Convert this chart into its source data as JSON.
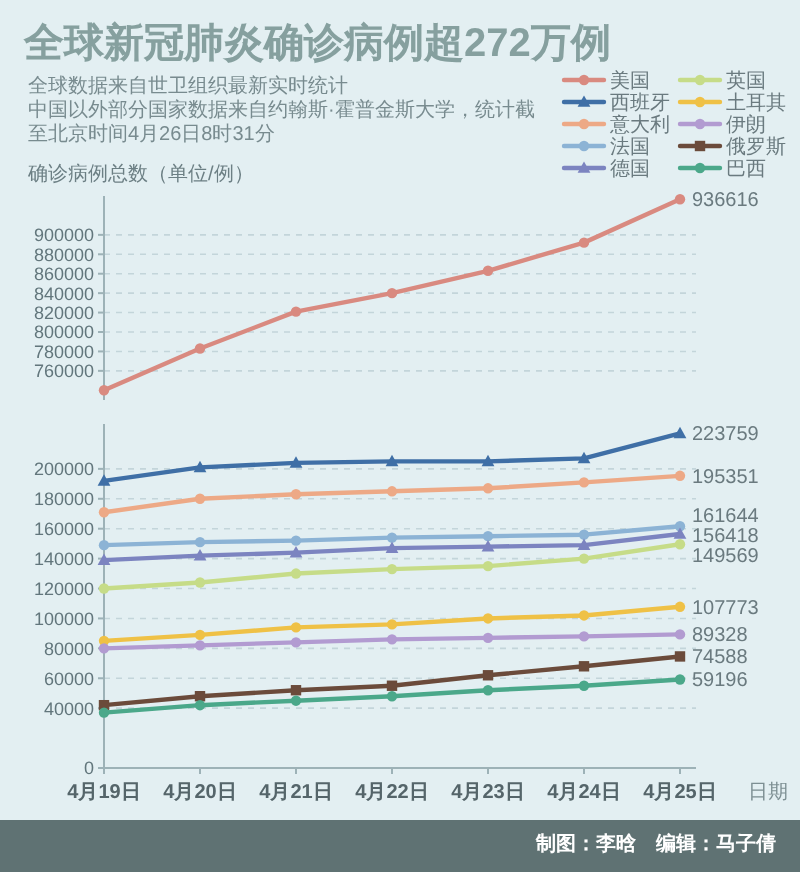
{
  "chart_data": [
    {
      "type": "line",
      "title": "全球新冠肺炎确诊病例超272万例",
      "subtitle": "全球数据来自世卫组织最新实时统计",
      "annotations": [
        "中国以外部分国家数据来自约翰斯·霍普金斯大学，统计截至北京时间4月26日8时31分"
      ],
      "ylabel": "确诊病例总数（单位/例）",
      "categories": [
        "4月19日",
        "4月20日",
        "4月21日",
        "4月22日",
        "4月23日",
        "4月24日",
        "4月25日"
      ],
      "series": [
        {
          "name": "美国",
          "color": "#d98a80",
          "marker": "circle",
          "values": [
            740000,
            783000,
            821000,
            840000,
            863000,
            892000,
            936616
          ],
          "value_labels": [
            null,
            null,
            null,
            null,
            null,
            null,
            "936616"
          ]
        }
      ],
      "ylim": [
        730000,
        940000
      ],
      "yticks": [
        760000,
        780000,
        800000,
        820000,
        840000,
        860000,
        880000,
        900000
      ],
      "grid": "y",
      "legend": "top right",
      "tick_labels": "y"
    },
    {
      "type": "line",
      "xlabel": "日期",
      "categories": [
        "4月19日",
        "4月20日",
        "4月21日",
        "4月22日",
        "4月23日",
        "4月24日",
        "4月25日"
      ],
      "series": [
        {
          "name": "西班牙",
          "color": "#3f6fa6",
          "marker": "triangle",
          "values": [
            192000,
            201000,
            204000,
            205000,
            205000,
            207000,
            223759
          ],
          "value_labels": [
            null,
            null,
            null,
            null,
            null,
            null,
            "223759"
          ]
        },
        {
          "name": "意大利",
          "color": "#eda986",
          "marker": "circle",
          "values": [
            171000,
            180000,
            183000,
            185000,
            187000,
            191000,
            195351
          ],
          "value_labels": [
            null,
            null,
            null,
            null,
            null,
            null,
            "195351"
          ]
        },
        {
          "name": "法国",
          "color": "#8cb3d5",
          "marker": "circle",
          "values": [
            149000,
            151000,
            152000,
            154000,
            155000,
            156000,
            161644
          ],
          "value_labels": [
            null,
            null,
            null,
            null,
            null,
            null,
            "161644"
          ]
        },
        {
          "name": "德国",
          "color": "#7c84c0",
          "marker": "triangle",
          "values": [
            139000,
            142000,
            144000,
            147000,
            148000,
            149000,
            156418
          ],
          "value_labels": [
            null,
            null,
            null,
            null,
            null,
            null,
            "156418"
          ]
        },
        {
          "name": "英国",
          "color": "#c6dc88",
          "marker": "circle",
          "values": [
            120000,
            124000,
            130000,
            133000,
            135000,
            140000,
            149569
          ],
          "value_labels": [
            null,
            null,
            null,
            null,
            null,
            null,
            "149569"
          ]
        },
        {
          "name": "土耳其",
          "color": "#efc146",
          "marker": "circle",
          "values": [
            85000,
            89000,
            94000,
            96000,
            100000,
            102000,
            107773
          ],
          "value_labels": [
            null,
            null,
            null,
            null,
            null,
            null,
            "107773"
          ]
        },
        {
          "name": "伊朗",
          "color": "#b29bd1",
          "marker": "circle",
          "values": [
            80000,
            82000,
            84000,
            86000,
            87000,
            88000,
            89328
          ],
          "value_labels": [
            null,
            null,
            null,
            null,
            null,
            null,
            "89328"
          ]
        },
        {
          "name": "俄罗斯",
          "color": "#6b4b3b",
          "marker": "square",
          "values": [
            42000,
            48000,
            52000,
            55000,
            62000,
            68000,
            74588
          ],
          "value_labels": [
            null,
            null,
            null,
            null,
            null,
            null,
            "74588"
          ]
        },
        {
          "name": "巴西",
          "color": "#4ba88a",
          "marker": "circle",
          "values": [
            37000,
            42000,
            45000,
            48000,
            52000,
            55000,
            59196
          ],
          "value_labels": [
            null,
            null,
            null,
            null,
            null,
            null,
            "59196"
          ]
        }
      ],
      "ylim": [
        0,
        230000
      ],
      "yticks": [
        0,
        40000,
        60000,
        80000,
        100000,
        120000,
        140000,
        160000,
        180000,
        200000
      ],
      "grid": "y",
      "legend": "top right",
      "annotations": [
        "制图：李晗　编辑：马子倩"
      ]
    }
  ]
}
